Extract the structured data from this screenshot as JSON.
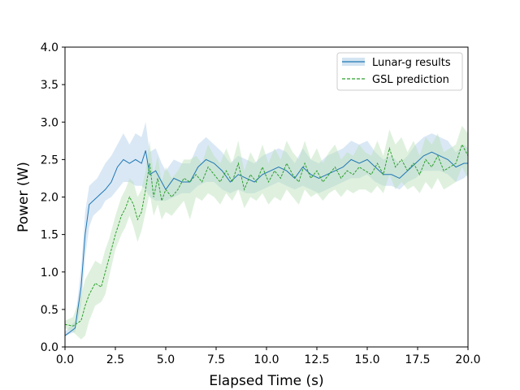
{
  "chart_data": {
    "type": "line",
    "title": "",
    "xlabel": "Elapsed Time (s)",
    "ylabel": "Power (W)",
    "xlim": [
      0,
      20
    ],
    "ylim": [
      0,
      4
    ],
    "xticks": [
      "0.0",
      "2.5",
      "5.0",
      "7.5",
      "10.0",
      "12.5",
      "15.0",
      "17.5",
      "20.0"
    ],
    "yticks": [
      "0.0",
      "0.5",
      "1.0",
      "1.5",
      "2.0",
      "2.5",
      "3.0",
      "3.5",
      "4.0"
    ],
    "grid": false,
    "legend": "top-right",
    "series": [
      {
        "name": "Lunar-g results",
        "color": "#1f77b4",
        "band_color": "#aecde8",
        "style": "solid",
        "x": [
          0.0,
          0.5,
          0.8,
          1.0,
          1.2,
          1.4,
          1.6,
          1.8,
          2.0,
          2.3,
          2.6,
          2.9,
          3.2,
          3.5,
          3.8,
          4.0,
          4.2,
          4.5,
          4.8,
          5.0,
          5.4,
          5.8,
          6.2,
          6.6,
          7.0,
          7.4,
          7.8,
          8.2,
          8.6,
          9.0,
          9.4,
          9.8,
          10.2,
          10.6,
          11.0,
          11.4,
          11.8,
          12.2,
          12.6,
          13.0,
          13.4,
          13.8,
          14.2,
          14.6,
          15.0,
          15.4,
          15.8,
          16.2,
          16.6,
          17.0,
          17.4,
          17.8,
          18.2,
          18.6,
          19.0,
          19.4,
          19.8,
          20.0
        ],
        "values": [
          0.15,
          0.25,
          0.8,
          1.5,
          1.9,
          1.95,
          2.0,
          2.05,
          2.1,
          2.2,
          2.4,
          2.5,
          2.45,
          2.5,
          2.45,
          2.62,
          2.3,
          2.35,
          2.2,
          2.1,
          2.25,
          2.2,
          2.2,
          2.4,
          2.5,
          2.45,
          2.35,
          2.2,
          2.3,
          2.25,
          2.2,
          2.3,
          2.35,
          2.4,
          2.35,
          2.25,
          2.4,
          2.3,
          2.25,
          2.3,
          2.35,
          2.4,
          2.5,
          2.45,
          2.5,
          2.4,
          2.3,
          2.3,
          2.25,
          2.35,
          2.45,
          2.55,
          2.6,
          2.55,
          2.5,
          2.4,
          2.45,
          2.45
        ],
        "lower": [
          0.15,
          0.2,
          0.55,
          1.2,
          1.6,
          1.75,
          1.8,
          1.85,
          1.95,
          2.0,
          2.1,
          2.2,
          2.2,
          2.15,
          2.15,
          2.1,
          2.0,
          1.95,
          1.95,
          1.95,
          2.0,
          2.05,
          2.05,
          2.15,
          2.2,
          2.2,
          2.1,
          2.05,
          2.1,
          2.05,
          2.05,
          2.1,
          2.15,
          2.2,
          2.15,
          2.1,
          2.15,
          2.1,
          2.05,
          2.1,
          2.15,
          2.2,
          2.25,
          2.25,
          2.3,
          2.2,
          2.15,
          2.15,
          2.1,
          2.2,
          2.25,
          2.35,
          2.35,
          2.35,
          2.3,
          2.2,
          2.25,
          2.3
        ],
        "upper": [
          0.2,
          0.35,
          1.05,
          1.8,
          2.15,
          2.2,
          2.25,
          2.35,
          2.45,
          2.55,
          2.7,
          2.85,
          2.7,
          2.85,
          2.8,
          3.0,
          2.6,
          2.65,
          2.45,
          2.35,
          2.5,
          2.45,
          2.45,
          2.7,
          2.8,
          2.7,
          2.6,
          2.45,
          2.55,
          2.5,
          2.45,
          2.55,
          2.6,
          2.65,
          2.6,
          2.45,
          2.65,
          2.5,
          2.45,
          2.55,
          2.6,
          2.65,
          2.75,
          2.7,
          2.75,
          2.6,
          2.5,
          2.55,
          2.45,
          2.55,
          2.7,
          2.8,
          2.85,
          2.8,
          2.75,
          2.6,
          2.7,
          2.65
        ]
      },
      {
        "name": "GSL prediction",
        "color": "#2ca02c",
        "band_color": "#b7e0b5",
        "style": "dashed",
        "x": [
          0.0,
          0.4,
          0.8,
          1.0,
          1.2,
          1.5,
          1.8,
          2.0,
          2.2,
          2.5,
          2.8,
          3.0,
          3.2,
          3.4,
          3.6,
          3.8,
          4.0,
          4.2,
          4.4,
          4.6,
          4.8,
          5.0,
          5.3,
          5.6,
          5.9,
          6.2,
          6.5,
          6.8,
          7.1,
          7.4,
          7.7,
          8.0,
          8.3,
          8.6,
          8.9,
          9.2,
          9.5,
          9.8,
          10.1,
          10.4,
          10.7,
          11.0,
          11.3,
          11.6,
          11.9,
          12.2,
          12.5,
          12.8,
          13.1,
          13.4,
          13.7,
          14.0,
          14.3,
          14.6,
          14.9,
          15.2,
          15.5,
          15.8,
          16.1,
          16.4,
          16.7,
          17.0,
          17.3,
          17.6,
          17.9,
          18.2,
          18.5,
          18.8,
          19.1,
          19.4,
          19.7,
          20.0
        ],
        "values": [
          0.3,
          0.28,
          0.35,
          0.55,
          0.7,
          0.85,
          0.8,
          1.0,
          1.2,
          1.5,
          1.75,
          1.85,
          2.0,
          1.9,
          1.7,
          1.8,
          2.1,
          2.45,
          2.0,
          2.25,
          1.95,
          2.1,
          2.0,
          2.1,
          2.25,
          2.2,
          2.3,
          2.2,
          2.4,
          2.3,
          2.2,
          2.35,
          2.2,
          2.45,
          2.1,
          2.3,
          2.2,
          2.4,
          2.2,
          2.35,
          2.25,
          2.45,
          2.3,
          2.2,
          2.45,
          2.25,
          2.35,
          2.2,
          2.3,
          2.4,
          2.25,
          2.35,
          2.3,
          2.4,
          2.35,
          2.3,
          2.45,
          2.3,
          2.65,
          2.4,
          2.5,
          2.35,
          2.45,
          2.3,
          2.5,
          2.4,
          2.55,
          2.35,
          2.4,
          2.45,
          2.7,
          2.55
        ],
        "lower": [
          0.25,
          0.2,
          0.1,
          0.15,
          0.35,
          0.55,
          0.6,
          0.7,
          0.95,
          1.3,
          1.5,
          1.6,
          1.75,
          1.6,
          1.4,
          1.55,
          1.8,
          2.05,
          1.75,
          1.9,
          1.7,
          1.8,
          1.75,
          1.85,
          1.95,
          1.7,
          2.0,
          1.95,
          2.05,
          2.0,
          1.9,
          2.05,
          1.95,
          2.1,
          1.85,
          2.0,
          1.95,
          2.05,
          1.9,
          2.0,
          1.95,
          2.1,
          2.0,
          1.9,
          2.1,
          2.0,
          2.05,
          1.95,
          2.05,
          2.1,
          2.0,
          2.1,
          2.05,
          2.1,
          2.1,
          2.05,
          2.15,
          2.05,
          2.3,
          2.1,
          2.2,
          2.1,
          2.15,
          2.05,
          2.2,
          2.1,
          2.25,
          2.1,
          2.15,
          2.2,
          2.4,
          2.25
        ],
        "upper": [
          0.35,
          0.4,
          0.7,
          0.9,
          1.0,
          1.15,
          1.1,
          1.3,
          1.45,
          1.75,
          2.0,
          2.1,
          2.25,
          2.2,
          2.0,
          2.1,
          2.35,
          2.75,
          2.3,
          2.55,
          2.2,
          2.4,
          2.25,
          2.35,
          2.5,
          2.5,
          2.55,
          2.45,
          2.7,
          2.55,
          2.45,
          2.65,
          2.45,
          2.75,
          2.35,
          2.6,
          2.45,
          2.7,
          2.45,
          2.65,
          2.5,
          2.75,
          2.6,
          2.5,
          2.75,
          2.5,
          2.65,
          2.45,
          2.6,
          2.7,
          2.5,
          2.6,
          2.55,
          2.7,
          2.6,
          2.55,
          2.75,
          2.55,
          2.9,
          2.7,
          2.8,
          2.6,
          2.75,
          2.55,
          2.8,
          2.7,
          2.85,
          2.6,
          2.65,
          2.7,
          2.95,
          2.85
        ]
      }
    ]
  }
}
